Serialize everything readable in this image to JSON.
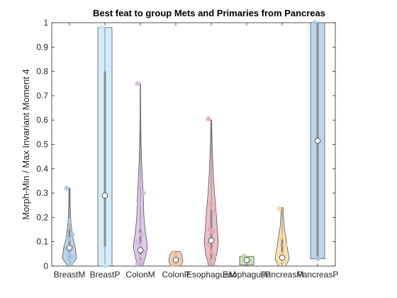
{
  "chart_data": {
    "type": "violin",
    "title": "Best feat to group Mets and Primaries from Pancreas",
    "xlabel": "",
    "ylabel": "Morph-Min / Max Invariant Moment 4",
    "ylim": [
      0,
      1
    ],
    "yticks": [
      0,
      0.1,
      0.2,
      0.3,
      0.4,
      0.5,
      0.6,
      0.7,
      0.8,
      0.9,
      1
    ],
    "ytick_labels": [
      "0",
      "0.1",
      "0.2",
      "0.3",
      "0.4",
      "0.5",
      "0.6",
      "0.7",
      "0.8",
      "0.9",
      "1"
    ],
    "grid": false,
    "categories": [
      "BreastM",
      "BreastP",
      "ColonM",
      "ColonP",
      "EsophagusM",
      "EsophagusP",
      "PancreasM",
      "PancreasP"
    ],
    "series": [
      {
        "category": "BreastM",
        "color": "#a8c8e4",
        "min": 0.0,
        "max": 0.32,
        "q1": 0.03,
        "q3": 0.15,
        "median": 0.075,
        "points": [
          0.32,
          0.185,
          0.13,
          0.11,
          0.08,
          0.07,
          0.05,
          0.035,
          0.03,
          0.01
        ],
        "density": [
          [
            0.0,
            0.2
          ],
          [
            0.03,
            1.0
          ],
          [
            0.07,
            0.85
          ],
          [
            0.12,
            0.45
          ],
          [
            0.18,
            0.2
          ],
          [
            0.25,
            0.1
          ],
          [
            0.32,
            0.08
          ]
        ]
      },
      {
        "category": "BreastP",
        "color": "#c6e6f8",
        "min": 0.0,
        "max": 0.98,
        "q1": 0.08,
        "q3": 0.8,
        "median": 0.29,
        "points": [
          0.98,
          0.0
        ],
        "density": [
          [
            0.0,
            1.0
          ],
          [
            0.98,
            1.0
          ]
        ]
      },
      {
        "category": "ColonM",
        "color": "#d4b8e0",
        "min": 0.0,
        "max": 0.75,
        "q1": 0.02,
        "q3": 0.15,
        "median": 0.065,
        "points": [
          0.75,
          0.335,
          0.3,
          0.255,
          0.13,
          0.1,
          0.085,
          0.06,
          0.04,
          0.02,
          0.01
        ],
        "density": [
          [
            0.0,
            0.35
          ],
          [
            0.04,
            0.75
          ],
          [
            0.08,
            1.0
          ],
          [
            0.13,
            0.75
          ],
          [
            0.2,
            0.5
          ],
          [
            0.3,
            0.4
          ],
          [
            0.4,
            0.22
          ],
          [
            0.5,
            0.1
          ],
          [
            0.6,
            0.06
          ],
          [
            0.75,
            0.04
          ]
        ]
      },
      {
        "category": "ColonP",
        "color": "#f2c2a4",
        "min": 0.0,
        "max": 0.06,
        "q1": 0.005,
        "q3": 0.045,
        "median": 0.025,
        "points": [
          0.055,
          0.045,
          0.03,
          0.02,
          0.01,
          0.005
        ],
        "density": [
          [
            0.0,
            0.7
          ],
          [
            0.02,
            1.0
          ],
          [
            0.045,
            0.85
          ],
          [
            0.06,
            0.55
          ]
        ]
      },
      {
        "category": "EsophagusM",
        "color": "#e4aab4",
        "min": 0.0,
        "max": 0.6,
        "q1": 0.03,
        "q3": 0.23,
        "median": 0.105,
        "points": [
          0.605,
          0.255,
          0.22,
          0.15,
          0.14,
          0.09,
          0.06,
          0.04,
          0.02
        ],
        "density": [
          [
            0.0,
            0.35
          ],
          [
            0.05,
            0.8
          ],
          [
            0.1,
            1.0
          ],
          [
            0.15,
            0.85
          ],
          [
            0.22,
            0.7
          ],
          [
            0.3,
            0.45
          ],
          [
            0.4,
            0.25
          ],
          [
            0.5,
            0.12
          ],
          [
            0.6,
            0.06
          ]
        ]
      },
      {
        "category": "EsophagusP",
        "color": "#bcdaa6",
        "min": 0.005,
        "max": 0.04,
        "q1": 0.015,
        "q3": 0.035,
        "median": 0.025,
        "points": [
          0.04,
          0.03,
          0.02
        ],
        "density": [
          [
            0.005,
            1.0
          ],
          [
            0.04,
            1.0
          ]
        ]
      },
      {
        "category": "PancreasM",
        "color": "#f8d898",
        "min": 0.0,
        "max": 0.24,
        "q1": 0.01,
        "q3": 0.12,
        "median": 0.035,
        "points": [
          0.235,
          0.12,
          0.085,
          0.05,
          0.02
        ],
        "density": [
          [
            0.0,
            0.5
          ],
          [
            0.03,
            1.0
          ],
          [
            0.08,
            0.7
          ],
          [
            0.12,
            0.5
          ],
          [
            0.17,
            0.25
          ],
          [
            0.24,
            0.12
          ]
        ]
      },
      {
        "category": "PancreasP",
        "color": "#a8c8e4",
        "min": 0.03,
        "max": 1.0,
        "q1": 0.03,
        "q3": 1.0,
        "median": 0.515,
        "points": [
          1.0,
          0.03
        ],
        "density": [
          [
            0.03,
            1.0
          ],
          [
            1.0,
            1.0
          ]
        ]
      }
    ]
  }
}
